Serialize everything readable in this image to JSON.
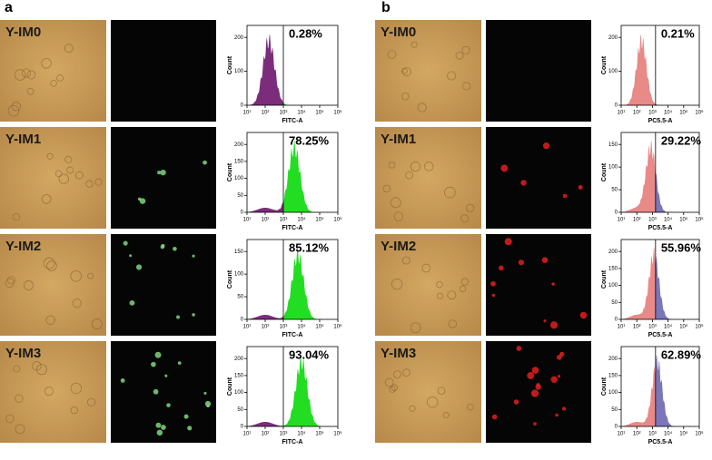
{
  "panels": [
    {
      "letter": "a",
      "x_label": "FITC-A",
      "y_label": "Count",
      "x_ticks": [
        "10¹",
        "10²",
        "10³",
        "10⁴",
        "10⁵",
        "10⁶"
      ],
      "rows": [
        {
          "name": "Y-IM0",
          "percent": "0.28%",
          "y_ticks": [
            "0",
            "100",
            "200"
          ]
        },
        {
          "name": "Y-IM1",
          "percent": "78.25%",
          "y_ticks": [
            "0",
            "50",
            "100",
            "150",
            "200"
          ]
        },
        {
          "name": "Y-IM2",
          "percent": "85.12%",
          "y_ticks": [
            "0",
            "50",
            "100",
            "150"
          ]
        },
        {
          "name": "Y-IM3",
          "percent": "93.04%",
          "y_ticks": [
            "0",
            "50",
            "100",
            "150",
            "200"
          ]
        }
      ]
    },
    {
      "letter": "b",
      "x_label": "PC5.5-A",
      "y_label": "Count",
      "x_ticks": [
        "10¹",
        "10²",
        "10³",
        "10⁴",
        "10⁵",
        "10⁶"
      ],
      "rows": [
        {
          "name": "Y-IM0",
          "percent": "0.21%",
          "y_ticks": [
            "0",
            "100",
            "200"
          ]
        },
        {
          "name": "Y-IM1",
          "percent": "29.22%",
          "y_ticks": [
            "0",
            "50",
            "100",
            "150"
          ]
        },
        {
          "name": "Y-IM2",
          "percent": "55.96%",
          "y_ticks": [
            "0",
            "50",
            "100",
            "150",
            "200"
          ]
        },
        {
          "name": "Y-IM3",
          "percent": "62.89%",
          "y_ticks": [
            "0",
            "50",
            "100",
            "150",
            "200"
          ]
        }
      ]
    }
  ]
}
